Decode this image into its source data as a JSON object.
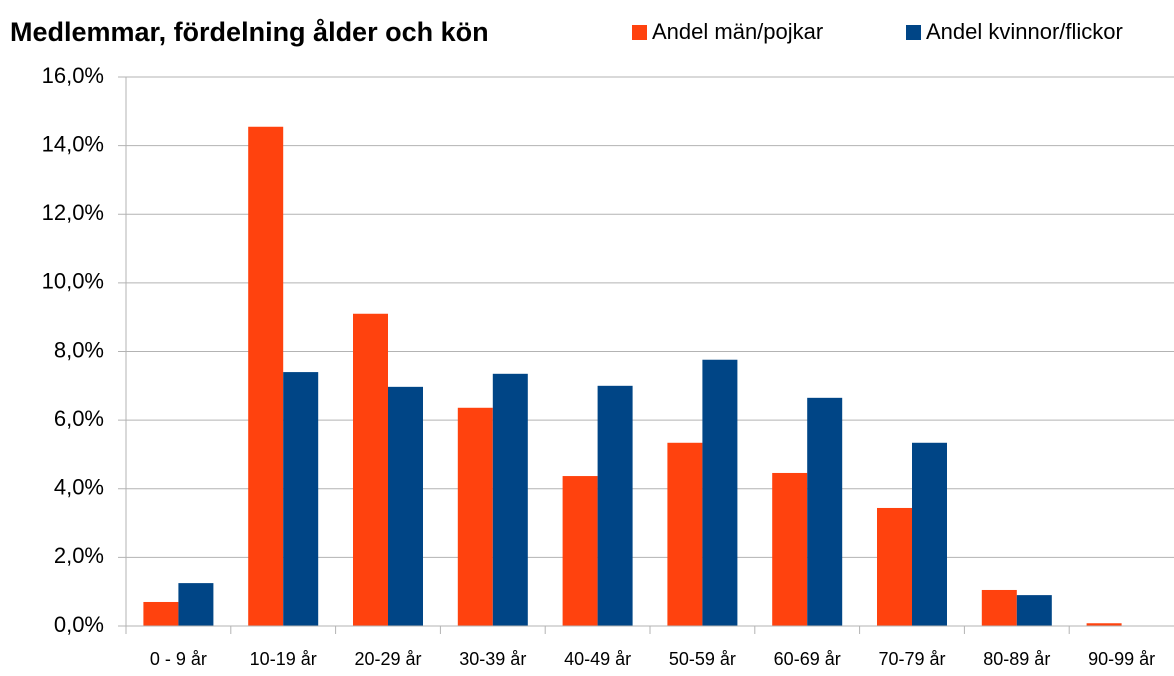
{
  "chart_data": {
    "type": "bar",
    "title": "Medlemmar, fördelning ålder och kön",
    "categories": [
      "0 - 9 år",
      "10-19 år",
      "20-29 år",
      "30-39 år",
      "40-49 år",
      "50-59 år",
      "60-69 år",
      "70-79 år",
      "80-89 år",
      "90-99 år"
    ],
    "series": [
      {
        "name": "Andel män/pojkar",
        "color": "#ff420e",
        "values": [
          0.7,
          14.55,
          9.1,
          6.36,
          4.37,
          5.34,
          4.46,
          3.44,
          1.05,
          0.08
        ]
      },
      {
        "name": "Andel kvinnor/flickor",
        "color": "#004586",
        "values": [
          1.25,
          7.4,
          6.97,
          7.35,
          7.0,
          7.76,
          6.65,
          5.34,
          0.9,
          0
        ]
      }
    ],
    "ylim": [
      0,
      16
    ],
    "yticks": [
      {
        "value": 0,
        "label": "0,0%"
      },
      {
        "value": 2,
        "label": "2,0%"
      },
      {
        "value": 4,
        "label": "4,0%"
      },
      {
        "value": 6,
        "label": "6,0%"
      },
      {
        "value": 8,
        "label": "8,0%"
      },
      {
        "value": 10,
        "label": "10,0%"
      },
      {
        "value": 12,
        "label": "12,0%"
      },
      {
        "value": 14,
        "label": "14,0%"
      },
      {
        "value": 16,
        "label": "16,0%"
      }
    ],
    "grid": true,
    "legend": "top-right"
  }
}
